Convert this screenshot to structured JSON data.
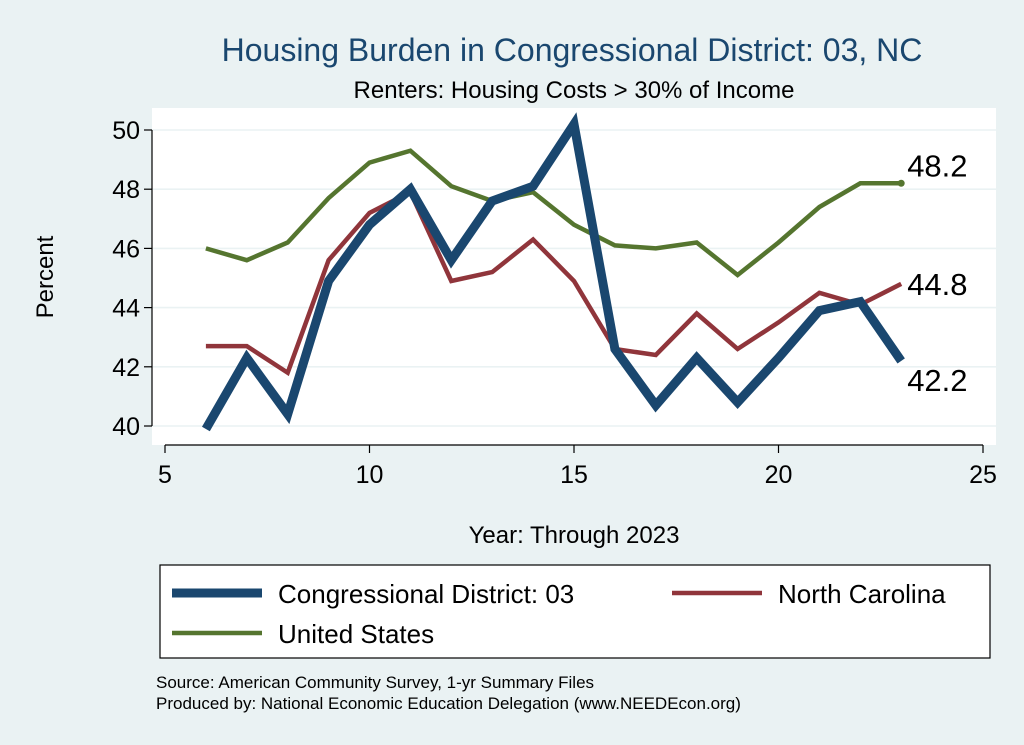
{
  "chart_data": {
    "type": "line",
    "title": "Housing Burden in Congressional District:  03, NC",
    "subtitle": "Renters: Housing Costs > 30% of Income",
    "xlabel": "Year: Through 2023",
    "ylabel": "Percent",
    "xlim": [
      5,
      25
    ],
    "ylim": [
      40,
      50
    ],
    "x_ticks": [
      5,
      10,
      15,
      20,
      25
    ],
    "y_ticks": [
      40,
      42,
      44,
      46,
      48,
      50
    ],
    "grid": true,
    "legend_position": "bottom",
    "series": [
      {
        "name": "Congressional District:  03",
        "color": "#1a476f",
        "x": [
          6,
          7,
          8,
          9,
          10,
          11,
          12,
          13,
          14,
          15,
          16,
          17,
          18,
          19,
          20,
          21,
          22,
          23
        ],
        "values": [
          39.9,
          42.3,
          40.4,
          44.9,
          46.8,
          48.0,
          45.6,
          47.6,
          48.1,
          50.2,
          42.6,
          40.7,
          42.3,
          40.8,
          42.3,
          43.9,
          44.2,
          42.2
        ],
        "end_label": "42.2"
      },
      {
        "name": "North Carolina",
        "color": "#90353b",
        "x": [
          6,
          7,
          8,
          9,
          10,
          11,
          12,
          13,
          14,
          15,
          16,
          17,
          18,
          19,
          20,
          21,
          22,
          23
        ],
        "values": [
          42.7,
          42.7,
          41.8,
          45.6,
          47.2,
          47.9,
          44.9,
          45.2,
          46.3,
          44.9,
          42.6,
          42.4,
          43.8,
          42.6,
          43.5,
          44.5,
          44.1,
          44.8
        ],
        "end_label": "44.8"
      },
      {
        "name": "United States",
        "color": "#55752f",
        "x": [
          6,
          7,
          8,
          9,
          10,
          11,
          12,
          13,
          14,
          15,
          16,
          17,
          18,
          19,
          20,
          21,
          22,
          23
        ],
        "values": [
          46.0,
          45.6,
          46.2,
          47.7,
          48.9,
          49.3,
          48.1,
          47.6,
          47.9,
          46.8,
          46.1,
          46.0,
          46.2,
          45.1,
          46.2,
          47.4,
          48.2,
          48.2
        ],
        "end_label": "48.2"
      }
    ],
    "source_note": "Source: American Community Survey, 1-yr Summary Files",
    "producer_note": "Produced by: National Economic Education Delegation (www.NEEDEcon.org)"
  }
}
